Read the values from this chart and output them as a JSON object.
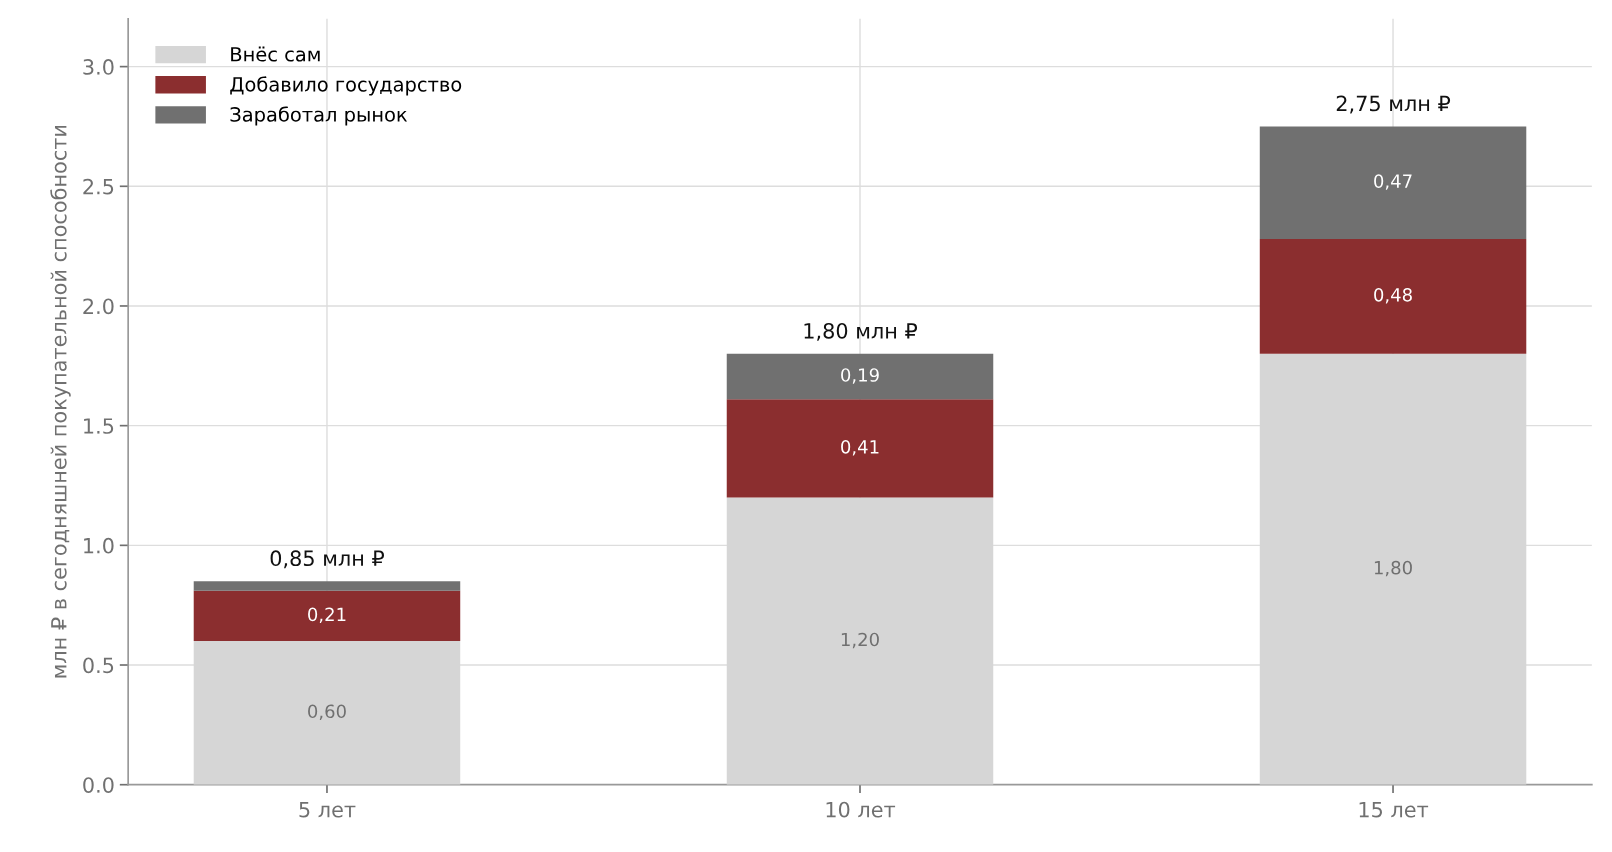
{
  "chart_data": {
    "type": "bar",
    "stacked": true,
    "ylabel": "млн ₽ в сегодняшней покупательной способности",
    "categories": [
      "5 лет",
      "10 лет",
      "15 лет"
    ],
    "series": [
      {
        "name": "Внёс сам",
        "color": "#d6d6d6",
        "values": [
          0.6,
          1.2,
          1.8
        ],
        "value_labels": [
          "0,60",
          "1,20",
          "1,80"
        ]
      },
      {
        "name": "Добавило государство",
        "color": "#8b2e2f",
        "values": [
          0.21,
          0.41,
          0.48
        ],
        "value_labels": [
          "0,21",
          "0,41",
          "0,48"
        ]
      },
      {
        "name": "Заработал рынок",
        "color": "#707070",
        "values": [
          0.04,
          0.19,
          0.47
        ],
        "value_labels": [
          null,
          "0,19",
          "0,47"
        ]
      }
    ],
    "totals": [
      "0,85 млн ₽",
      "1,80 млн ₽",
      "2,75 млн ₽"
    ],
    "ylim": [
      0,
      3.2
    ],
    "yticks": [
      {
        "value": 0,
        "label": "0.0"
      },
      0.5,
      {
        "value": 1,
        "label": "1.0"
      },
      1.5,
      {
        "value": 2,
        "label": "2.0"
      },
      2.5,
      {
        "value": 3,
        "label": "3.0"
      }
    ],
    "grid": true,
    "legend": "top left"
  }
}
